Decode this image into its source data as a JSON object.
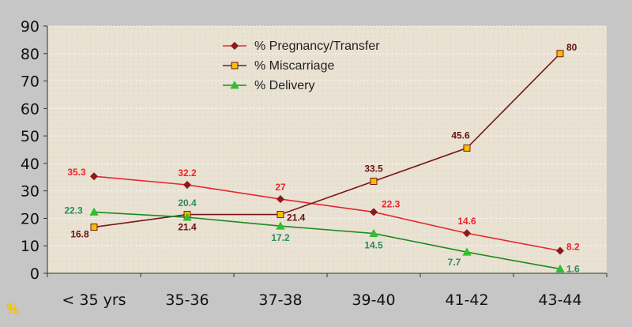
{
  "chart_data": {
    "type": "line",
    "categories": [
      "< 35 yrs",
      "35-36",
      "37-38",
      "39-40",
      "41-42",
      "43-44"
    ],
    "yticks": [
      0,
      10,
      20,
      30,
      40,
      50,
      60,
      70,
      80,
      90
    ],
    "ylim": [
      0,
      90
    ],
    "y_unit_label": "%",
    "grid": true,
    "legend_position": "top-center",
    "series": [
      {
        "name": "% Pregnancy/Transfer",
        "values": [
          35.3,
          32.2,
          27,
          22.3,
          14.6,
          8.2
        ],
        "color": "#e8242d",
        "marker_color": "#8b1a1a",
        "label_color": "#e8242d",
        "marker": "diamond"
      },
      {
        "name": "% Miscarriage",
        "values": [
          16.8,
          21.4,
          21.4,
          33.5,
          45.6,
          80
        ],
        "color": "#7b1416",
        "marker_color": "#f2c200",
        "label_color": "#6b1010",
        "marker": "square"
      },
      {
        "name": "% Delivery",
        "values": [
          22.3,
          20.4,
          17.2,
          14.5,
          7.7,
          1.6
        ],
        "color": "#1e8a1e",
        "marker_color": "#2fbf2f",
        "label_color": "#2a8a5a",
        "marker": "triangle"
      }
    ],
    "data_labels": [
      {
        "series": 0,
        "labels": [
          "35.3",
          "32.2",
          "27",
          "22.3",
          "14.6",
          "8.2"
        ]
      },
      {
        "series": 1,
        "labels": [
          "16.8",
          "21.4",
          "21.4",
          "33.5",
          "45.6",
          "80"
        ]
      },
      {
        "series": 2,
        "labels": [
          "22.3",
          "20.4",
          "17.2",
          "14.5",
          "7.7",
          "1.6"
        ]
      }
    ]
  }
}
